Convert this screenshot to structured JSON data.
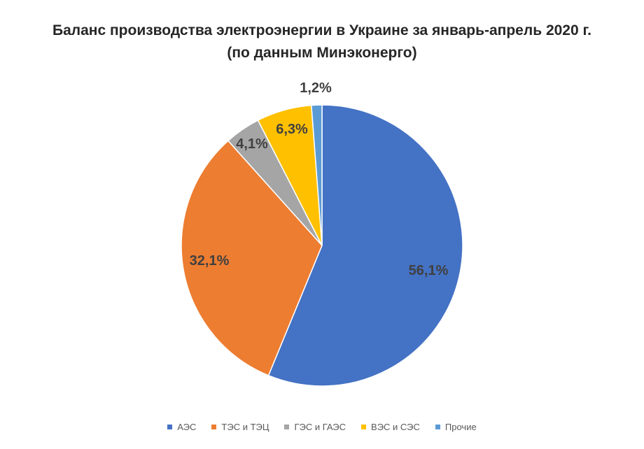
{
  "chart_data": {
    "type": "pie",
    "title_line1": "Баланс производства электроэнергии в Украине за январь-апрель 2020 г.",
    "title_line2": "(по данным Минэконерго)",
    "categories": [
      "АЭС",
      "ТЭС и ТЭЦ",
      "ГЭС и ГАЭС",
      "ВЭС и СЭС",
      "Прочие"
    ],
    "values": [
      56.1,
      32.1,
      4.1,
      6.3,
      1.2
    ],
    "labels": [
      "56,1%",
      "32,1%",
      "4,1%",
      "6,3%",
      "1,2%"
    ],
    "colors": [
      "#4472C4",
      "#ED7D31",
      "#A5A5A5",
      "#FFC000",
      "#5B9BD5"
    ],
    "start_angle": "12 o'clock",
    "direction": "clockwise",
    "legend_position": "bottom"
  }
}
